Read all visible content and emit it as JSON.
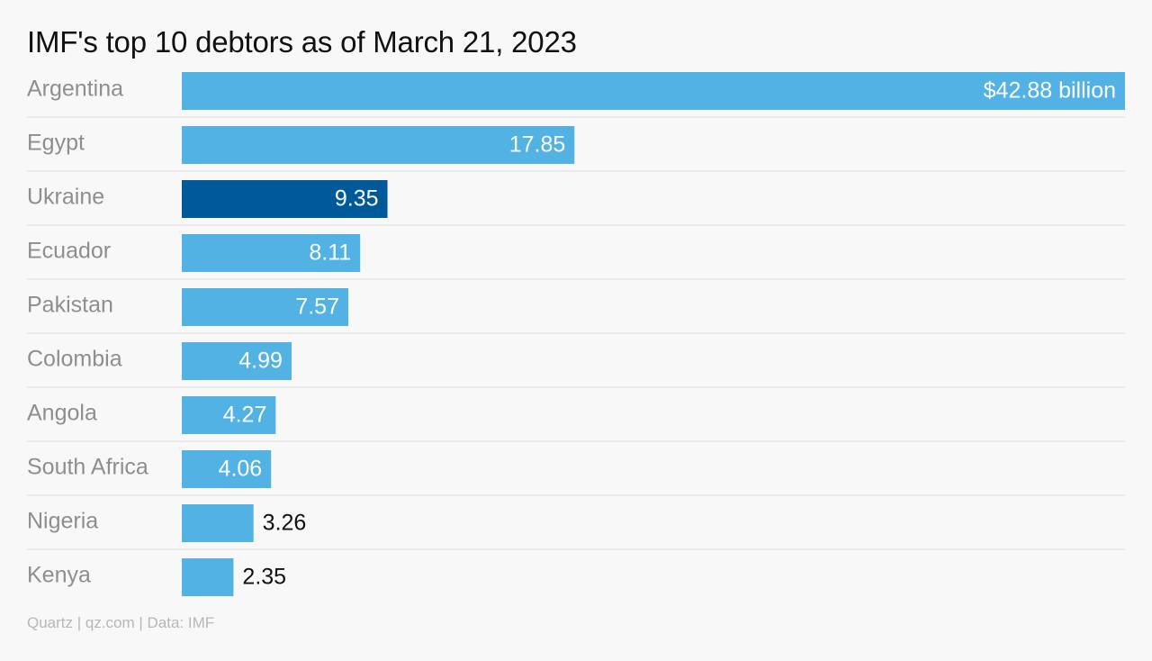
{
  "title": "IMF's top 10 debtors as of March 21, 2023",
  "source": "Quartz | qz.com | Data: IMF",
  "colors": {
    "bar": "#52b2e3",
    "highlight": "#005a9a",
    "category_label": "#8e8e8e",
    "value_label_inside": "#ffffff",
    "value_label_outside": "#111111",
    "row_divider": "#dcdcdc",
    "background": "#f8f8f8"
  },
  "chart_data": {
    "type": "bar",
    "orientation": "horizontal",
    "categories": [
      "Argentina",
      "Egypt",
      "Ukraine",
      "Ecuador",
      "Pakistan",
      "Colombia",
      "Angola",
      "South Africa",
      "Nigeria",
      "Kenya"
    ],
    "values": [
      42.88,
      17.85,
      9.35,
      8.11,
      7.57,
      4.99,
      4.27,
      4.06,
      3.26,
      2.35
    ],
    "value_labels": [
      "$42.88 billion",
      "17.85",
      "9.35",
      "8.11",
      "7.57",
      "4.99",
      "4.27",
      "4.06",
      "3.26",
      "2.35"
    ],
    "highlighted_category": "Ukraine",
    "unit": "billion USD",
    "xlim": [
      0,
      42.88
    ],
    "gridlines": false,
    "row_dividers": true,
    "legend": false
  }
}
